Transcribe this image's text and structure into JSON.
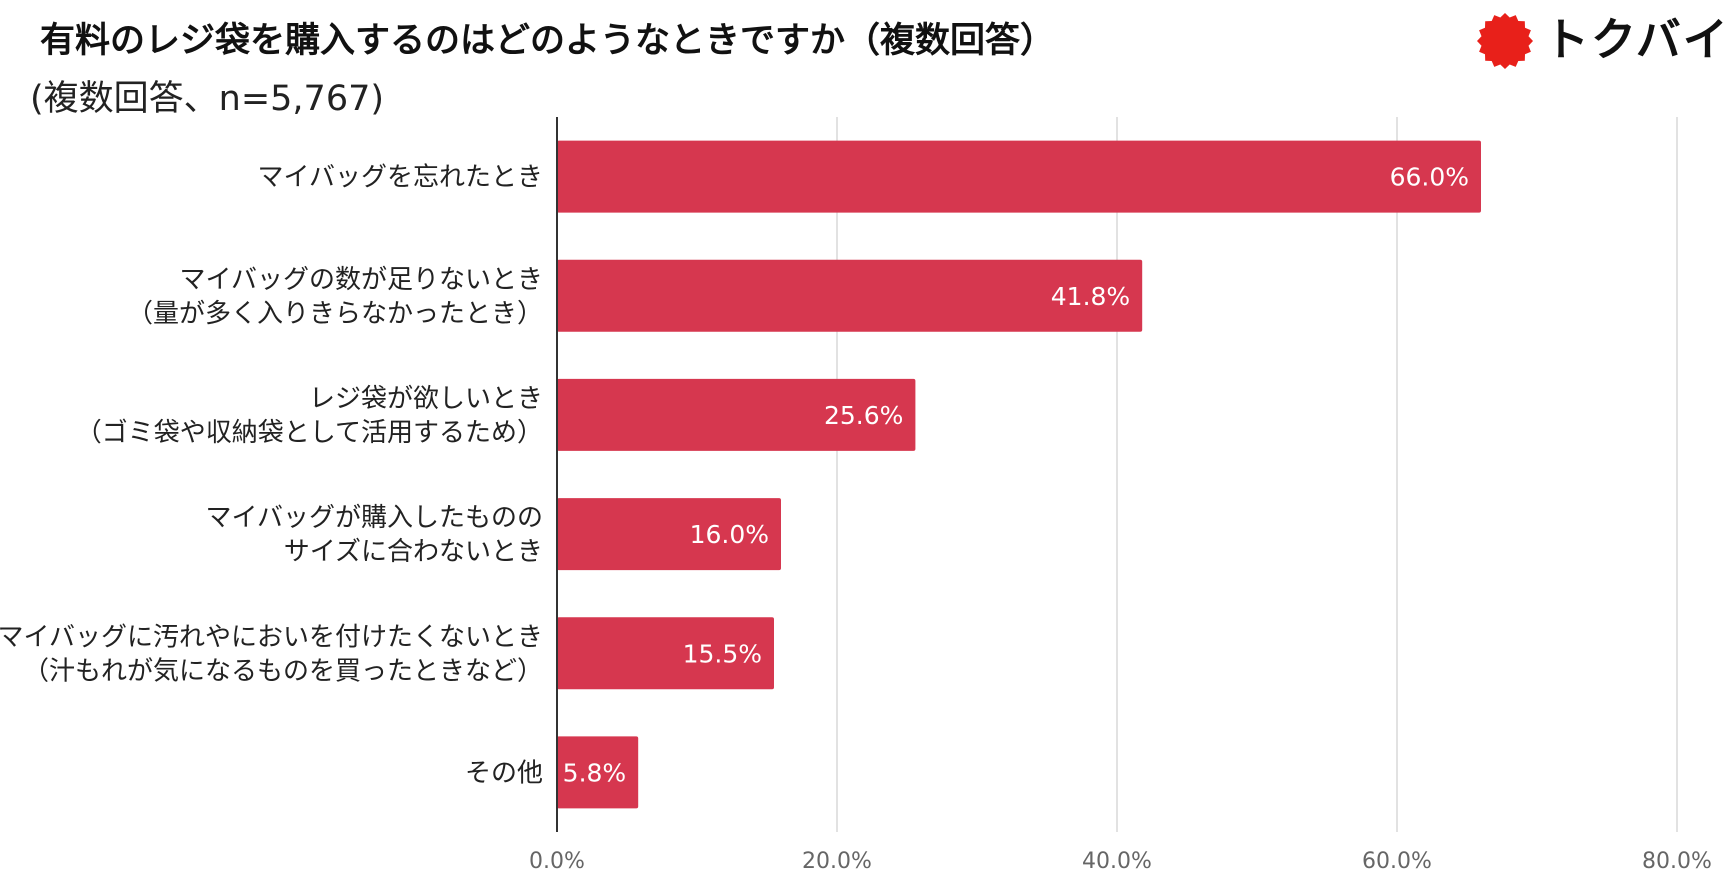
{
  "header": {
    "title": "有料のレジ袋を購入するのはどのようなときですか（複数回答）",
    "subtitle": "(複数回答、n=5,767)"
  },
  "logo": {
    "text": "トクバイ",
    "mark_color": "#e8201a"
  },
  "chart_data": {
    "type": "bar",
    "orientation": "horizontal",
    "title": "有料のレジ袋を購入するのはどのようなときですか（複数回答）",
    "subtitle": "(複数回答、n=5,767)",
    "categories": [
      [
        "マイバッグを忘れたとき"
      ],
      [
        "マイバッグの数が足りないとき",
        "（量が多く入りきらなかったとき）"
      ],
      [
        "レジ袋が欲しいとき",
        "（ゴミ袋や収納袋として活用するため）"
      ],
      [
        "マイバッグが購入したものの",
        "サイズに合わないとき"
      ],
      [
        "マイバッグに汚れやにおいを付けたくないとき",
        "（汁もれが気になるものを買ったときなど）"
      ],
      [
        "その他"
      ]
    ],
    "values": [
      66.0,
      41.8,
      25.6,
      16.0,
      15.5,
      5.8
    ],
    "value_labels": [
      "66.0%",
      "41.8%",
      "25.6%",
      "16.0%",
      "15.5%",
      "5.8%"
    ],
    "xlim": [
      0,
      80
    ],
    "xticks": [
      0,
      20,
      40,
      60,
      80
    ],
    "xtick_labels": [
      "0.0%",
      "20.0%",
      "40.0%",
      "60.0%",
      "80.0%"
    ],
    "xlabel": "",
    "ylabel": "",
    "grid": true,
    "bar_color": "#d6374f",
    "grid_color": "#d9d9d9",
    "axis_color": "#333333"
  }
}
